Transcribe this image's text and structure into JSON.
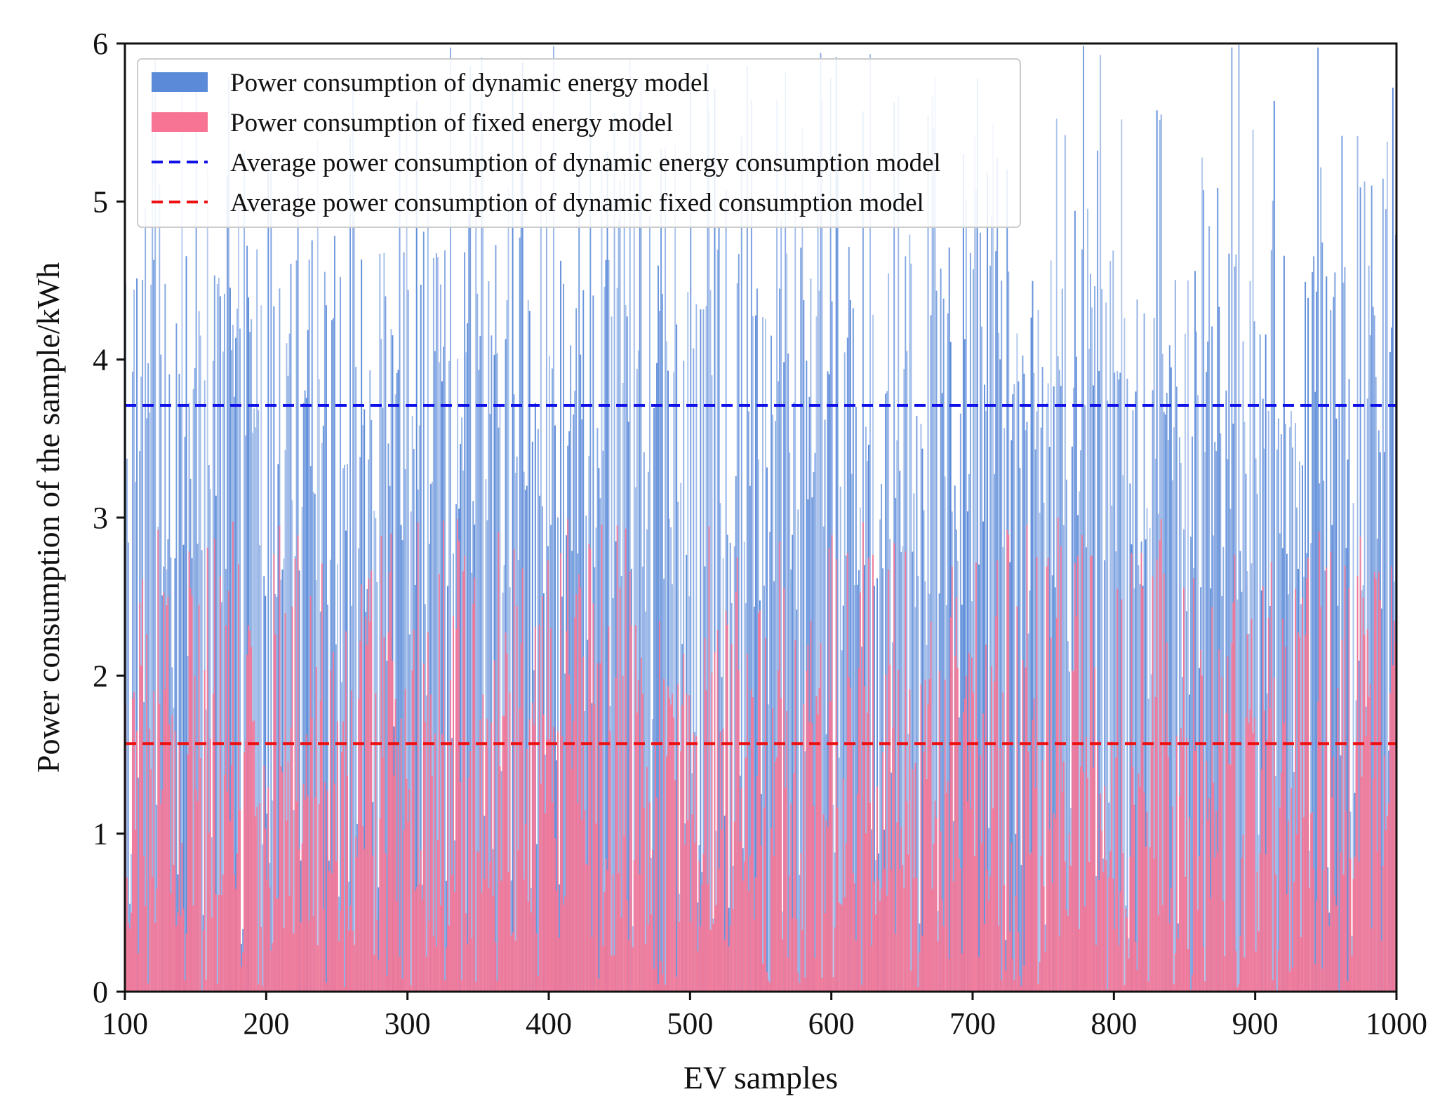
{
  "chart_data": {
    "type": "bar",
    "title": "",
    "xlabel": "EV samples",
    "ylabel": "Power consumption of the sample/kWh",
    "xlim": [
      100,
      1000
    ],
    "ylim": [
      0,
      6
    ],
    "x_ticks": [
      100,
      200,
      300,
      400,
      500,
      600,
      700,
      800,
      900,
      1000
    ],
    "y_ticks": [
      0,
      1,
      2,
      3,
      4,
      5,
      6
    ],
    "grid": false,
    "legend_position": "top-left",
    "colors": {
      "dynamic": "#5b8ad8",
      "fixed": "#f87494",
      "avg_dynamic": "#1010e8",
      "avg_fixed": "#ee1010"
    },
    "legend": [
      {
        "label": "Power consumption of dynamic energy model",
        "kind": "patch",
        "color": "#5b8ad8"
      },
      {
        "label": "Power consumption of fixed energy model",
        "kind": "patch",
        "color": "#f87494"
      },
      {
        "label": "Average power consumption of dynamic energy consumption model",
        "kind": "dashed-line",
        "color": "#1010e8"
      },
      {
        "label": "Average power consumption of dynamic fixed consumption model",
        "kind": "dashed-line",
        "color": "#ee1010"
      }
    ],
    "series": [
      {
        "name": "Power consumption of dynamic energy model",
        "kind": "bars",
        "x_range": [
          100,
          1000
        ],
        "sample_count": 900,
        "y_range": [
          0.3,
          6.0
        ],
        "mean": 3.7
      },
      {
        "name": "Power consumption of fixed energy model",
        "kind": "bars",
        "x_range": [
          100,
          1000
        ],
        "sample_count": 900,
        "y_range": [
          0.0,
          3.0
        ],
        "mean": 1.57
      }
    ],
    "reference_lines": [
      {
        "name": "Average power consumption of dynamic energy consumption model",
        "y": 3.71,
        "style": "dashed"
      },
      {
        "name": "Average power consumption of dynamic fixed consumption model",
        "y": 1.57,
        "style": "dashed"
      }
    ]
  }
}
